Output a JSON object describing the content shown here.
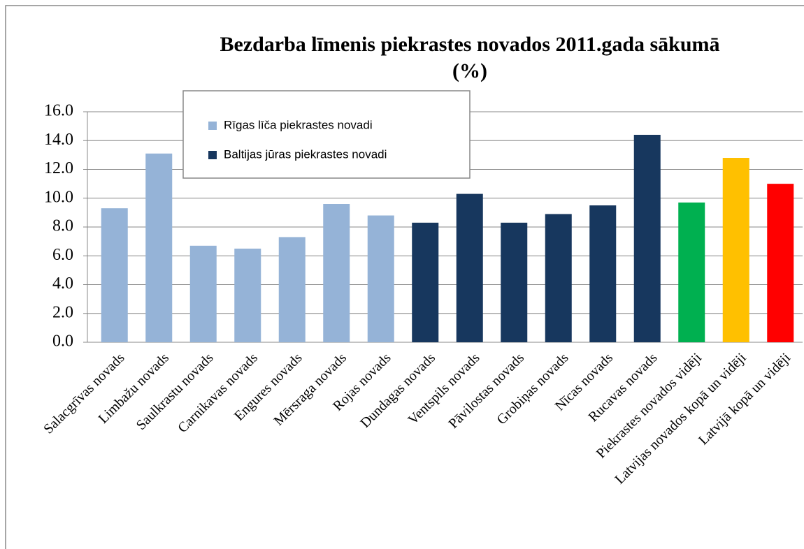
{
  "chart_data": {
    "type": "bar",
    "title": "Bezdarba līmenis piekrastes novados 2011.gada sākumā",
    "subtitle": "(%)",
    "categories": [
      "Salacgrīvas novads",
      "Limbažu novads",
      "Saulkrastu novads",
      "Carnikavas novads",
      "Engures novads",
      "Mērsraga novads",
      "Rojas novads",
      "Dundagas novads",
      "Ventspils novads",
      "Pāvilostas novads",
      "Grobiņas novads",
      "Nīcas novads",
      "Rucavas novads",
      "Piekrastes novados vidēji",
      "Latvijas novados kopā un vidēji",
      "Latvijā kopā un vidēji"
    ],
    "values": [
      9.3,
      13.1,
      6.7,
      6.5,
      7.3,
      9.6,
      8.8,
      8.3,
      10.3,
      8.3,
      8.9,
      9.5,
      14.4,
      9.7,
      12.8,
      11.0
    ],
    "colors": [
      "#95b3d7",
      "#95b3d7",
      "#95b3d7",
      "#95b3d7",
      "#95b3d7",
      "#95b3d7",
      "#95b3d7",
      "#17375e",
      "#17375e",
      "#17375e",
      "#17375e",
      "#17375e",
      "#17375e",
      "#00b050",
      "#ffc000",
      "#ff0000"
    ],
    "legend": [
      {
        "name": "Rīgas līča piekrastes novadi",
        "color": "#95b3d7"
      },
      {
        "name": "Baltijas jūras piekrastes novadi",
        "color": "#17375e"
      }
    ],
    "ylim": [
      0,
      16
    ],
    "yticks": [
      {
        "value": 0,
        "label": "0.0"
      },
      {
        "value": 2,
        "label": "2.0"
      },
      {
        "value": 4,
        "label": "4.0"
      },
      {
        "value": 6,
        "label": "6.0"
      },
      {
        "value": 8,
        "label": "8.0"
      },
      {
        "value": 10,
        "label": "10.0"
      },
      {
        "value": 12,
        "label": "12.0"
      },
      {
        "value": 14,
        "label": "14.0"
      },
      {
        "value": 16,
        "label": "16.0"
      }
    ],
    "grid": true
  }
}
